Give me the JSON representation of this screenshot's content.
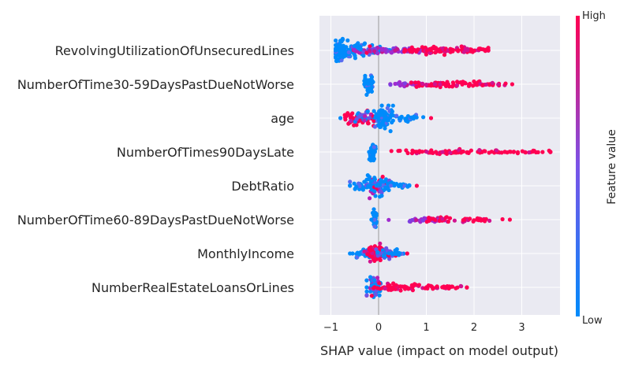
{
  "chart_data": {
    "type": "scatter",
    "subtype": "shap-beeswarm",
    "xlabel": "SHAP value (impact on model output)",
    "xticks": [
      -1,
      0,
      1,
      2,
      3
    ],
    "xtick_labels": [
      "−1",
      "0",
      "1",
      "2",
      "3"
    ],
    "xlim": [
      -1.2,
      3.8
    ],
    "grid": true,
    "colorbar": {
      "title": "Feature value",
      "high_label": "High",
      "low_label": "Low",
      "low_color": "#008bfb",
      "high_color": "#ff0052"
    },
    "features": [
      {
        "name": "RevolvingUtilizationOfUnsecuredLines",
        "min": -0.9,
        "max": 2.3,
        "clusters": [
          {
            "center": -0.8,
            "spread": 0.08,
            "width": 15,
            "count": 70,
            "color": "low"
          },
          {
            "center": -0.55,
            "spread": 0.18,
            "width": 9,
            "count": 60,
            "color": "low"
          },
          {
            "center": -0.1,
            "spread": 0.25,
            "width": 5,
            "count": 40,
            "color": "mixed"
          },
          {
            "center": 0.4,
            "spread": 0.35,
            "width": 4,
            "count": 45,
            "color": "purple"
          },
          {
            "center": 1.2,
            "spread": 0.35,
            "width": 5,
            "count": 70,
            "color": "high"
          },
          {
            "center": 1.9,
            "spread": 0.25,
            "width": 3,
            "count": 30,
            "color": "high"
          }
        ]
      },
      {
        "name": "NumberOfTime30-59DaysPastDueNotWorse",
        "min": -0.3,
        "max": 2.8,
        "clusters": [
          {
            "center": -0.22,
            "spread": 0.05,
            "width": 13,
            "count": 60,
            "color": "low"
          },
          {
            "center": 0.6,
            "spread": 0.25,
            "width": 3,
            "count": 35,
            "color": "purple"
          },
          {
            "center": 1.4,
            "spread": 0.4,
            "width": 4,
            "count": 60,
            "color": "high"
          },
          {
            "center": 2.3,
            "spread": 0.2,
            "width": 2,
            "count": 20,
            "color": "high"
          }
        ]
      },
      {
        "name": "age",
        "min": -0.8,
        "max": 1.1,
        "clusters": [
          {
            "center": -0.45,
            "spread": 0.15,
            "width": 8,
            "count": 55,
            "color": "high"
          },
          {
            "center": -0.2,
            "spread": 0.15,
            "width": 9,
            "count": 50,
            "color": "mixed"
          },
          {
            "center": 0.12,
            "spread": 0.1,
            "width": 14,
            "count": 70,
            "color": "low"
          },
          {
            "center": 0.5,
            "spread": 0.22,
            "width": 4,
            "count": 35,
            "color": "low"
          }
        ]
      },
      {
        "name": "NumberOfTimes90DaysLate",
        "min": -0.2,
        "max": 3.6,
        "clusters": [
          {
            "center": -0.12,
            "spread": 0.03,
            "width": 11,
            "count": 50,
            "color": "low"
          },
          {
            "center": 1.5,
            "spread": 0.55,
            "width": 3,
            "count": 70,
            "color": "high"
          },
          {
            "center": 2.9,
            "spread": 0.35,
            "width": 2,
            "count": 25,
            "color": "high"
          }
        ]
      },
      {
        "name": "DebtRatio",
        "min": -0.6,
        "max": 0.8,
        "clusters": [
          {
            "center": -0.25,
            "spread": 0.18,
            "width": 6,
            "count": 45,
            "color": "low"
          },
          {
            "center": 0.0,
            "spread": 0.12,
            "width": 13,
            "count": 70,
            "color": "mixed"
          },
          {
            "center": 0.35,
            "spread": 0.2,
            "width": 4,
            "count": 35,
            "color": "low"
          }
        ]
      },
      {
        "name": "NumberOfTime60-89DaysPastDueNotWorse",
        "min": -0.15,
        "max": 2.75,
        "clusters": [
          {
            "center": -0.08,
            "spread": 0.02,
            "width": 12,
            "count": 45,
            "color": "low"
          },
          {
            "center": 0.9,
            "spread": 0.25,
            "width": 3,
            "count": 40,
            "color": "purple"
          },
          {
            "center": 1.7,
            "spread": 0.4,
            "width": 3,
            "count": 45,
            "color": "high"
          }
        ]
      },
      {
        "name": "MonthlyIncome",
        "min": -0.6,
        "max": 0.6,
        "clusters": [
          {
            "center": -0.25,
            "spread": 0.15,
            "width": 6,
            "count": 40,
            "color": "low"
          },
          {
            "center": -0.08,
            "spread": 0.08,
            "width": 13,
            "count": 55,
            "color": "high"
          },
          {
            "center": 0.15,
            "spread": 0.12,
            "width": 7,
            "count": 45,
            "color": "mixed"
          },
          {
            "center": 0.4,
            "spread": 0.1,
            "width": 3,
            "count": 15,
            "color": "low"
          }
        ]
      },
      {
        "name": "NumberRealEstateLoansOrLines",
        "min": -0.25,
        "max": 1.85,
        "clusters": [
          {
            "center": -0.1,
            "spread": 0.07,
            "width": 14,
            "count": 60,
            "color": "mixed"
          },
          {
            "center": 0.4,
            "spread": 0.25,
            "width": 5,
            "count": 45,
            "color": "high"
          },
          {
            "center": 1.2,
            "spread": 0.35,
            "width": 3,
            "count": 35,
            "color": "high"
          }
        ]
      }
    ]
  }
}
